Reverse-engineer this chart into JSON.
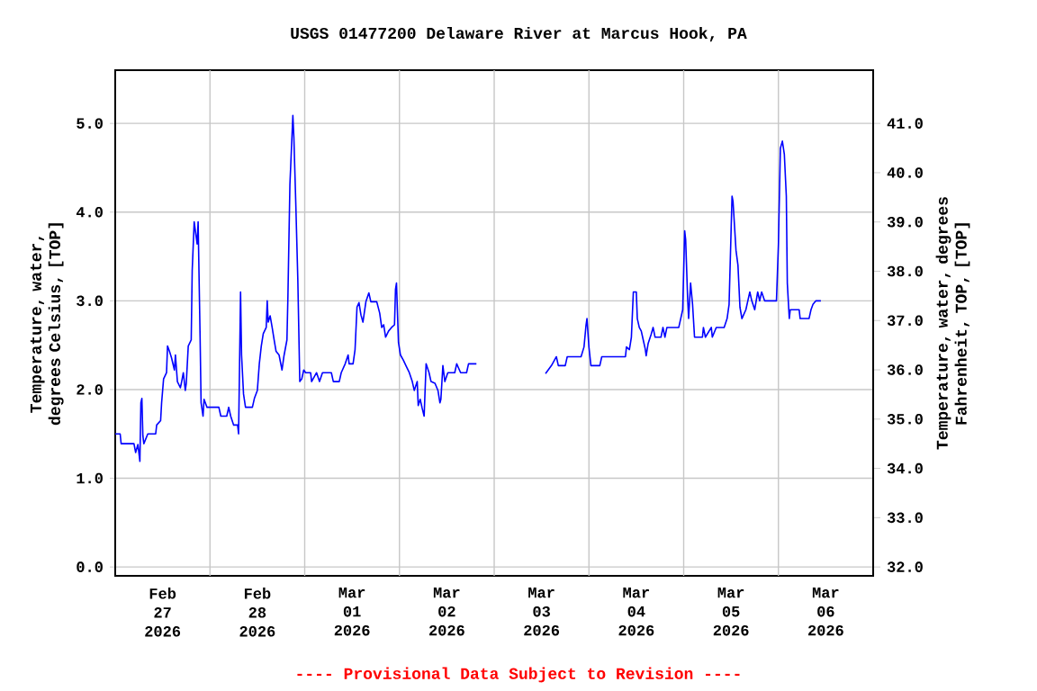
{
  "chart_data": {
    "type": "line",
    "title": "USGS 01477200 Delaware River at Marcus Hook, PA",
    "ylabel": "Temperature, water, degrees Celsius, [TOP]",
    "y2label": "Temperature, water, degrees Fahrenheit, TOP, [TOP]",
    "annotations": [
      "---- Provisional Data Subject to Revision ----"
    ],
    "grid": true,
    "marker": "none",
    "line_style": "solid",
    "xlim": [
      "2026-02-27",
      "2026-03-07"
    ],
    "xticks": [
      {
        "value": "2026-02-27T12:00",
        "label": "Feb 27 2026"
      },
      {
        "value": "2026-02-28T12:00",
        "label": "Feb 28 2026"
      },
      {
        "value": "2026-03-01T12:00",
        "label": "Mar 01 2026"
      },
      {
        "value": "2026-03-02T12:00",
        "label": "Mar 02 2026"
      },
      {
        "value": "2026-03-03T12:00",
        "label": "Mar 03 2026"
      },
      {
        "value": "2026-03-04T12:00",
        "label": "Mar 04 2026"
      },
      {
        "value": "2026-03-05T12:00",
        "label": "Mar 05 2026"
      },
      {
        "value": "2026-03-06T12:00",
        "label": "Mar 06 2026"
      },
      {
        "value": "2026-02-28",
        "label": null
      },
      {
        "value": "2026-03-01",
        "label": null
      },
      {
        "value": "2026-03-02",
        "label": null
      },
      {
        "value": "2026-03-03",
        "label": null
      },
      {
        "value": "2026-03-04",
        "label": null
      },
      {
        "value": "2026-03-05",
        "label": null
      },
      {
        "value": "2026-03-06",
        "label": null
      }
    ],
    "ylim": [
      -0.1,
      5.6
    ],
    "yticks": [
      {
        "value": 0,
        "label": "0.0"
      },
      {
        "value": 1,
        "label": "1.0"
      },
      {
        "value": 2,
        "label": "2.0"
      },
      {
        "value": 3,
        "label": "3.0"
      },
      {
        "value": 4,
        "label": "4.0"
      },
      {
        "value": 5,
        "label": "5.0"
      }
    ],
    "y2lim": [
      31.82,
      42.08
    ],
    "y2ticks": [
      {
        "value": 32,
        "label": "32.0"
      },
      {
        "value": 33,
        "label": "33.0"
      },
      {
        "value": 34,
        "label": "34.0"
      },
      {
        "value": 35,
        "label": "35.0"
      },
      {
        "value": 36,
        "label": "36.0"
      },
      {
        "value": 37,
        "label": "37.0"
      },
      {
        "value": 38,
        "label": "38.0"
      },
      {
        "value": 39,
        "label": "39.0"
      },
      {
        "value": 40,
        "label": "40.0"
      },
      {
        "value": 41,
        "label": "41.0"
      }
    ],
    "series": [
      {
        "color": "#0000ff",
        "x": [
          "2026-02-27T00:00",
          "2026-02-27T01:15",
          "2026-02-27T01:30",
          "2026-02-27T04:45",
          "2026-02-27T05:10",
          "2026-02-27T05:45",
          "2026-02-27T06:15",
          "2026-02-27T06:30",
          "2026-02-27T06:45",
          "2026-02-27T07:00",
          "2026-02-27T07:15",
          "2026-02-27T08:15",
          "2026-02-27T10:15",
          "2026-02-27T10:30",
          "2026-02-27T11:30",
          "2026-02-27T11:45",
          "2026-02-27T12:15",
          "2026-02-27T13:00",
          "2026-02-27T13:15",
          "2026-02-27T13:45",
          "2026-02-27T14:15",
          "2026-02-27T15:00",
          "2026-02-27T15:15",
          "2026-02-27T15:45",
          "2026-02-27T16:30",
          "2026-02-27T16:45",
          "2026-02-27T17:15",
          "2026-02-27T17:45",
          "2026-02-27T18:00",
          "2026-02-27T18:30",
          "2026-02-27T19:15",
          "2026-02-27T19:30",
          "2026-02-27T20:00",
          "2026-02-27T20:45",
          "2026-02-27T21:00",
          "2026-02-27T21:30",
          "2026-02-27T21:45",
          "2026-02-27T22:15",
          "2026-02-27T22:30",
          "2026-02-27T23:15",
          "2026-02-28T02:15",
          "2026-02-28T02:45",
          "2026-02-28T04:15",
          "2026-02-28T04:45",
          "2026-02-28T05:15",
          "2026-02-28T06:00",
          "2026-02-28T07:00",
          "2026-02-28T07:15",
          "2026-02-28T07:30",
          "2026-02-28T07:45",
          "2026-02-28T08:00",
          "2026-02-28T08:30",
          "2026-02-28T09:00",
          "2026-02-28T10:45",
          "2026-02-28T11:15",
          "2026-02-28T12:00",
          "2026-02-28T12:30",
          "2026-02-28T13:00",
          "2026-02-28T13:30",
          "2026-02-28T14:15",
          "2026-02-28T14:30",
          "2026-02-28T14:45",
          "2026-02-28T15:15",
          "2026-02-28T15:45",
          "2026-02-28T16:15",
          "2026-02-28T16:45",
          "2026-02-28T17:30",
          "2026-02-28T18:15",
          "2026-02-28T18:45",
          "2026-02-28T19:30",
          "2026-02-28T19:45",
          "2026-02-28T20:15",
          "2026-02-28T21:00",
          "2026-02-28T21:15",
          "2026-02-28T21:45",
          "2026-02-28T22:15",
          "2026-02-28T22:45",
          "2026-02-28T23:15",
          "2026-02-28T23:45",
          "2026-03-01T00:15",
          "2026-03-01T01:30",
          "2026-03-01T01:45",
          "2026-03-01T03:00",
          "2026-03-01T03:45",
          "2026-03-01T04:30",
          "2026-03-01T06:45",
          "2026-03-01T07:15",
          "2026-03-01T08:45",
          "2026-03-01T09:15",
          "2026-03-01T10:15",
          "2026-03-01T11:00",
          "2026-03-01T11:15",
          "2026-03-01T12:15",
          "2026-03-01T12:45",
          "2026-03-01T13:15",
          "2026-03-01T13:45",
          "2026-03-01T14:15",
          "2026-03-01T14:45",
          "2026-03-01T15:30",
          "2026-03-01T16:15",
          "2026-03-01T16:45",
          "2026-03-01T18:15",
          "2026-03-01T19:00",
          "2026-03-01T19:30",
          "2026-03-01T20:00",
          "2026-03-01T20:30",
          "2026-03-01T21:15",
          "2026-03-01T22:00",
          "2026-03-01T22:45",
          "2026-03-01T23:00",
          "2026-03-01T23:15",
          "2026-03-01T23:45",
          "2026-03-02T00:15",
          "2026-03-02T01:00",
          "2026-03-02T01:45",
          "2026-03-02T02:30",
          "2026-03-02T03:15",
          "2026-03-02T03:45",
          "2026-03-02T04:30",
          "2026-03-02T04:45",
          "2026-03-02T05:15",
          "2026-03-02T05:45",
          "2026-03-02T06:15",
          "2026-03-02T06:45",
          "2026-03-02T07:30",
          "2026-03-02T08:00",
          "2026-03-02T09:00",
          "2026-03-02T09:45",
          "2026-03-02T10:15",
          "2026-03-02T10:30",
          "2026-03-02T11:00",
          "2026-03-02T11:30",
          "2026-03-02T12:15",
          "2026-03-02T14:00",
          "2026-03-02T14:30",
          "2026-03-02T15:30",
          "2026-03-02T17:00",
          "2026-03-02T17:30",
          "2026-03-02T19:30",
          "2026-03-03T04:00",
          "2026-03-03T13:00",
          "2026-03-03T14:30",
          "2026-03-03T15:45",
          "2026-03-03T16:15",
          "2026-03-03T18:00",
          "2026-03-03T18:30",
          "2026-03-03T22:00",
          "2026-03-03T22:45",
          "2026-03-03T23:15",
          "2026-03-03T23:30",
          "2026-03-04T00:00",
          "2026-03-04T00:30",
          "2026-03-04T02:45",
          "2026-03-04T03:15",
          "2026-03-04T09:15",
          "2026-03-04T09:30",
          "2026-03-04T10:15",
          "2026-03-04T10:45",
          "2026-03-04T11:15",
          "2026-03-04T12:00",
          "2026-03-04T12:15",
          "2026-03-04T12:45",
          "2026-03-04T13:15",
          "2026-03-04T13:45",
          "2026-03-04T14:15",
          "2026-03-04T14:30",
          "2026-03-04T15:00",
          "2026-03-04T15:45",
          "2026-03-04T16:15",
          "2026-03-04T16:45",
          "2026-03-04T18:15",
          "2026-03-04T18:45",
          "2026-03-04T19:15",
          "2026-03-04T19:45",
          "2026-03-04T22:45",
          "2026-03-04T23:15",
          "2026-03-04T23:45",
          "2026-03-05T00:15",
          "2026-03-05T00:30",
          "2026-03-05T01:00",
          "2026-03-05T01:15",
          "2026-03-05T01:45",
          "2026-03-05T02:15",
          "2026-03-05T02:45",
          "2026-03-05T04:45",
          "2026-03-05T05:00",
          "2026-03-05T05:30",
          "2026-03-05T07:00",
          "2026-03-05T07:15",
          "2026-03-05T08:15",
          "2026-03-05T10:15",
          "2026-03-05T11:00",
          "2026-03-05T11:30",
          "2026-03-05T12:15",
          "2026-03-05T12:30",
          "2026-03-05T13:15",
          "2026-03-05T13:45",
          "2026-03-05T14:15",
          "2026-03-05T14:45",
          "2026-03-05T15:45",
          "2026-03-05T16:15",
          "2026-03-05T16:45",
          "2026-03-05T17:15",
          "2026-03-05T18:00",
          "2026-03-05T18:45",
          "2026-03-05T19:15",
          "2026-03-05T19:45",
          "2026-03-05T20:30",
          "2026-03-05T23:30",
          "2026-03-06T00:00",
          "2026-03-06T00:30",
          "2026-03-06T01:00",
          "2026-03-06T01:30",
          "2026-03-06T02:00",
          "2026-03-06T02:15",
          "2026-03-06T02:45",
          "2026-03-06T03:00",
          "2026-03-06T05:15",
          "2026-03-06T05:30",
          "2026-03-06T07:45",
          "2026-03-06T08:15",
          "2026-03-06T08:45",
          "2026-03-06T09:30",
          "2026-03-06T10:45"
        ],
        "values": [
          1.5,
          1.5,
          1.39,
          1.39,
          1.29,
          1.38,
          1.19,
          1.85,
          1.9,
          1.48,
          1.39,
          1.5,
          1.5,
          1.6,
          1.65,
          1.85,
          2.12,
          2.19,
          2.49,
          2.43,
          2.36,
          2.22,
          2.39,
          2.09,
          2.02,
          2.07,
          2.19,
          1.99,
          2.07,
          2.49,
          2.56,
          3.34,
          3.89,
          3.64,
          3.89,
          2.59,
          1.85,
          1.7,
          1.89,
          1.8,
          1.8,
          1.7,
          1.7,
          1.8,
          1.7,
          1.6,
          1.6,
          1.5,
          2.29,
          3.1,
          2.39,
          1.95,
          1.8,
          1.8,
          1.9,
          1.99,
          2.29,
          2.49,
          2.63,
          2.7,
          3.0,
          2.76,
          2.83,
          2.7,
          2.56,
          2.43,
          2.39,
          2.22,
          2.38,
          2.56,
          3.06,
          4.31,
          5.09,
          4.85,
          4.08,
          3.25,
          2.09,
          2.12,
          2.22,
          2.19,
          2.19,
          2.09,
          2.19,
          2.09,
          2.19,
          2.19,
          2.09,
          2.09,
          2.19,
          2.29,
          2.39,
          2.29,
          2.29,
          2.45,
          2.93,
          2.98,
          2.84,
          2.76,
          2.99,
          3.09,
          2.99,
          2.99,
          2.86,
          2.7,
          2.73,
          2.59,
          2.66,
          2.7,
          2.73,
          3.13,
          3.2,
          2.53,
          2.39,
          2.33,
          2.26,
          2.19,
          2.09,
          1.99,
          2.09,
          1.82,
          1.89,
          1.79,
          1.7,
          2.29,
          2.19,
          2.09,
          2.07,
          1.99,
          1.85,
          1.89,
          2.27,
          2.09,
          2.19,
          2.19,
          2.29,
          2.19,
          2.19,
          2.29,
          2.29,
          null,
          2.18,
          2.27,
          2.37,
          2.27,
          2.27,
          2.37,
          2.37,
          2.48,
          2.72,
          2.8,
          2.48,
          2.27,
          2.27,
          2.37,
          2.37,
          2.48,
          2.45,
          2.59,
          3.1,
          3.1,
          2.8,
          2.7,
          2.66,
          2.56,
          2.46,
          2.38,
          2.52,
          2.62,
          2.7,
          2.59,
          2.59,
          2.7,
          2.59,
          2.7,
          2.7,
          2.8,
          2.9,
          3.79,
          3.69,
          3.03,
          2.8,
          3.2,
          2.96,
          2.59,
          2.59,
          2.7,
          2.59,
          2.7,
          2.59,
          2.7,
          2.7,
          2.8,
          2.96,
          4.18,
          4.12,
          3.57,
          3.4,
          2.93,
          2.8,
          2.9,
          3.0,
          3.1,
          3.0,
          2.9,
          3.1,
          3.0,
          3.1,
          3.0,
          3.0,
          3.64,
          4.72,
          4.8,
          4.65,
          4.18,
          3.2,
          2.8,
          2.9,
          2.9,
          2.8,
          2.8,
          2.9,
          2.96,
          3.0,
          3.0
        ]
      }
    ]
  }
}
